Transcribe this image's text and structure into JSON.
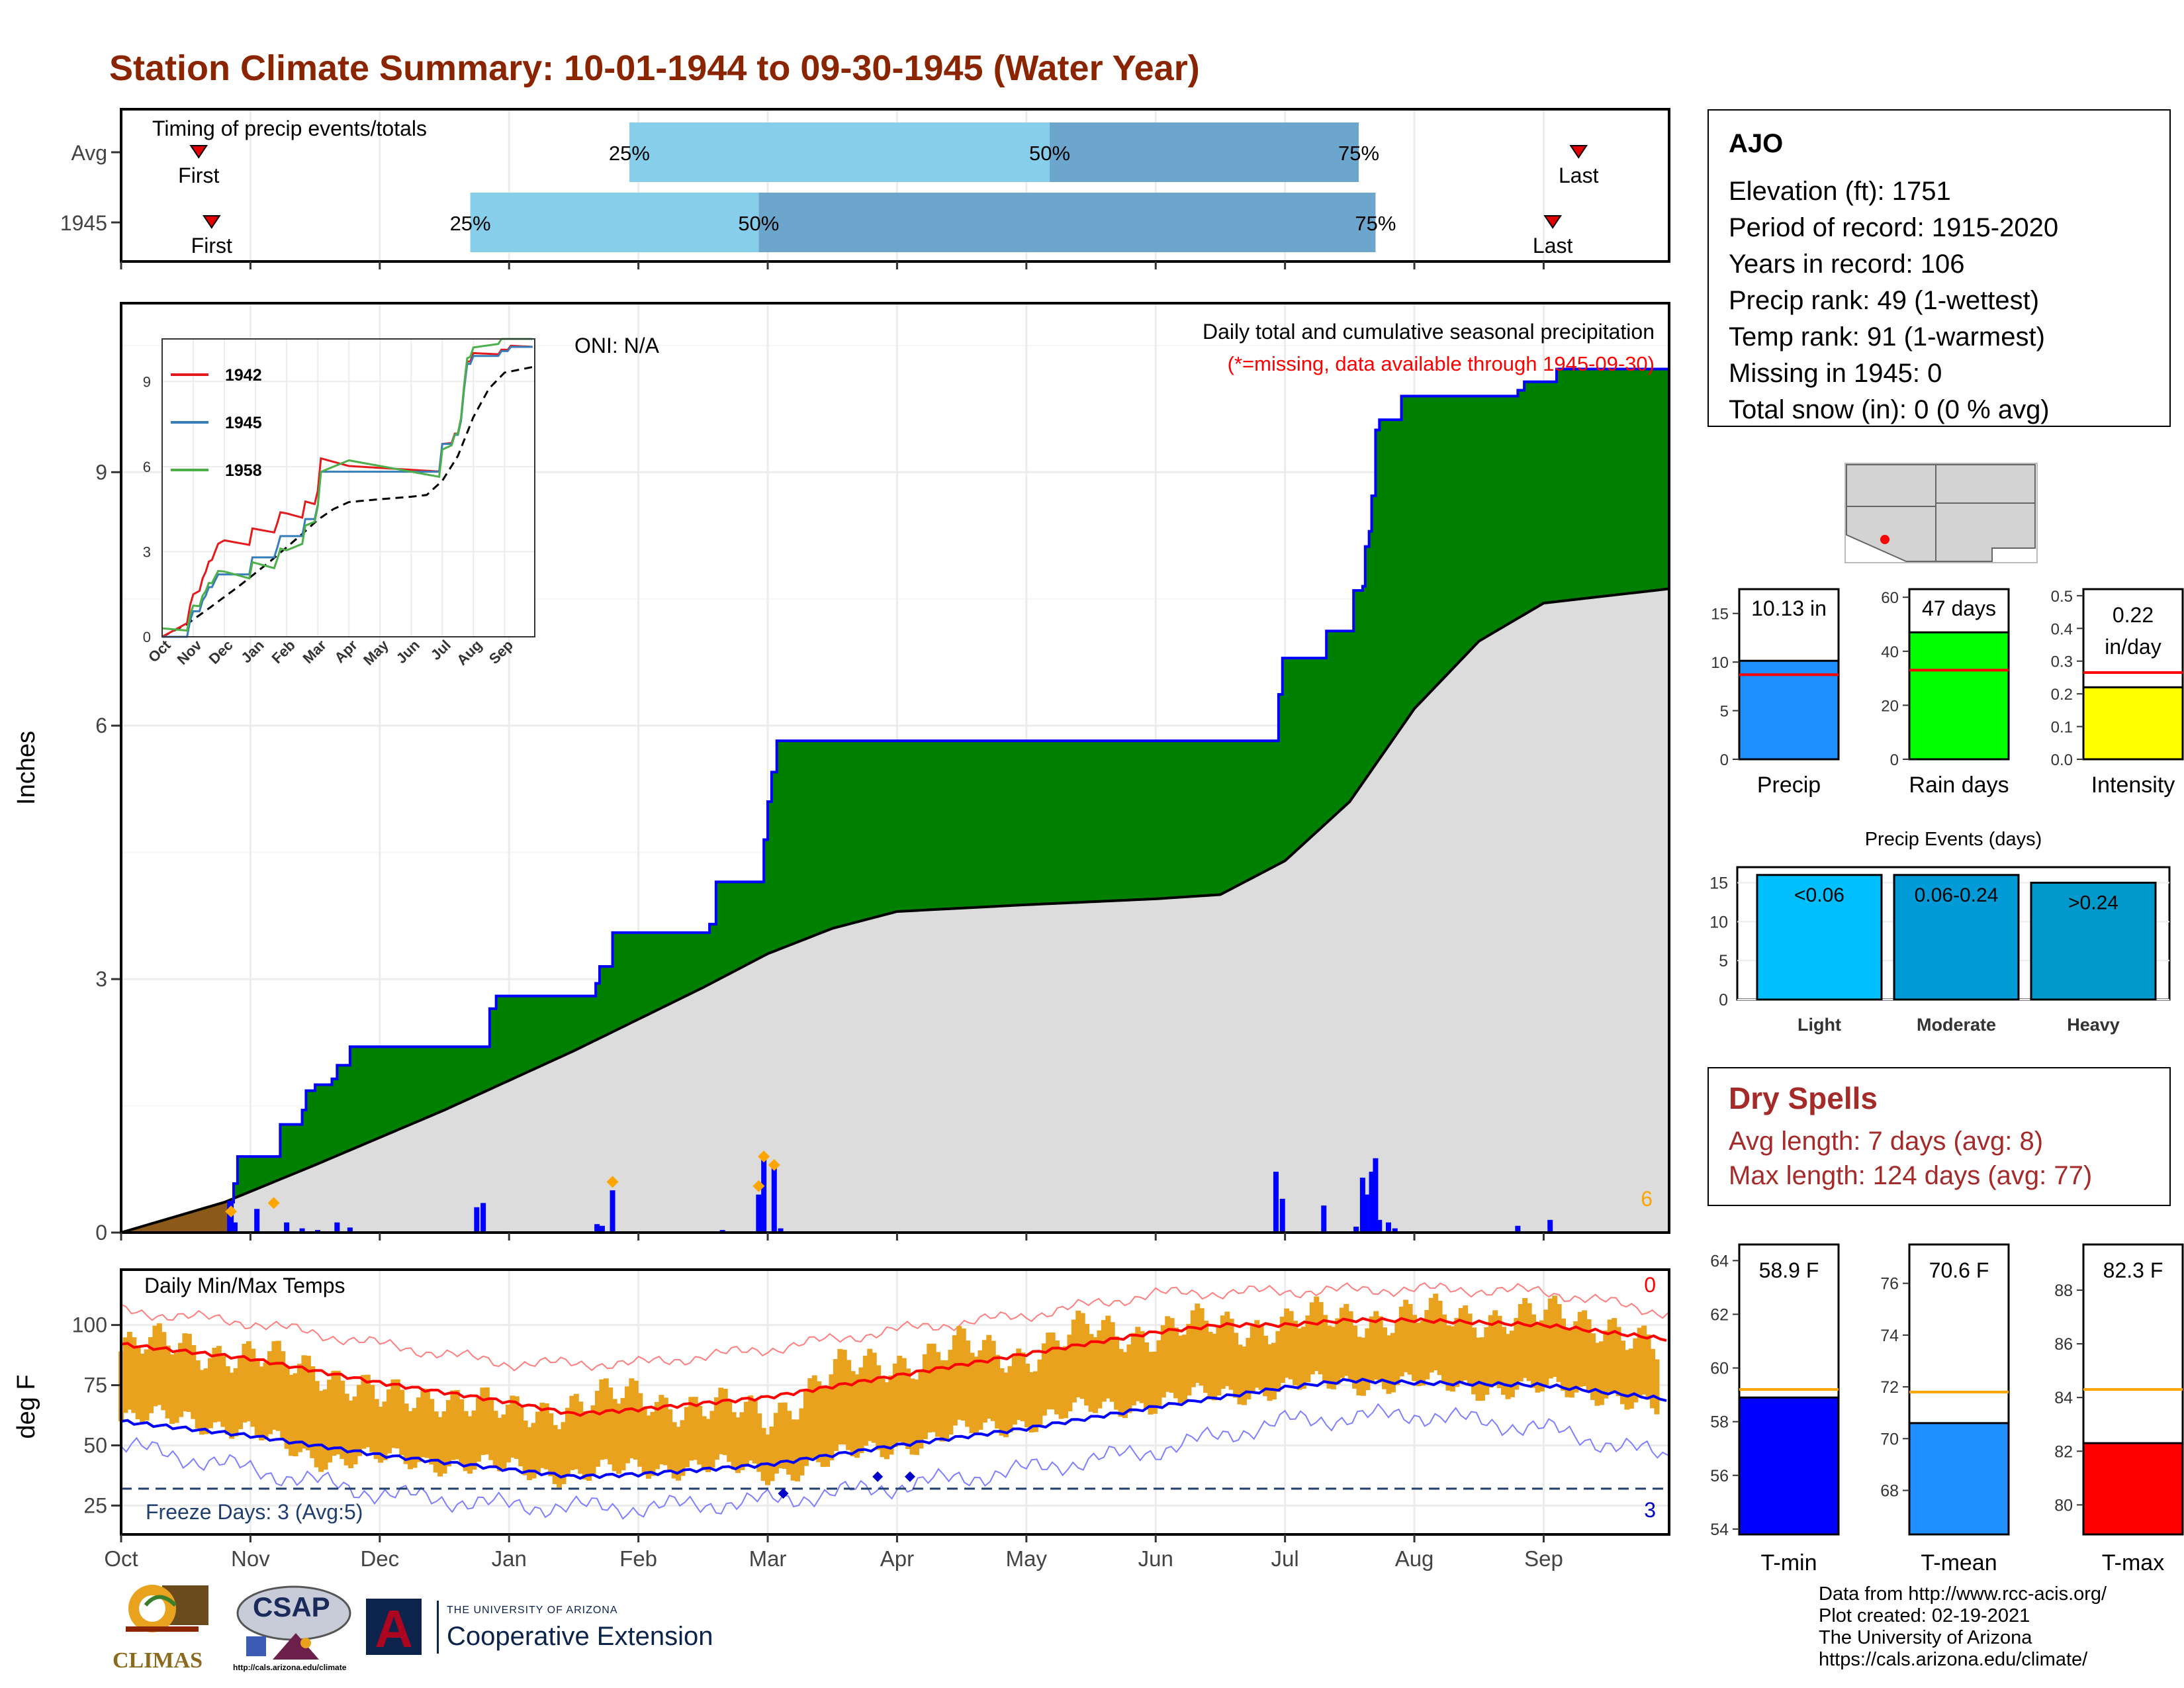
{
  "title": "Station Climate Summary: 10-01-1944 to 09-30-1945 (Water Year)",
  "colors": {
    "title": "#8b2500",
    "cum_precip": "#008000",
    "avg_cum": "#dcdcdc",
    "bars": "#0000ff",
    "temp_bar": "#e8a21e",
    "t_max_avg": "#ff0000",
    "t_min_avg": "#0000ff",
    "dry": "#a52a2a"
  },
  "timing": {
    "label": "Timing of precip events/totals",
    "rows": [
      {
        "name": "Avg",
        "first": "First",
        "last": "Last",
        "p25_month": 3.93,
        "p50_month": 7.18,
        "p75_month": 9.57,
        "first_month": 0.6,
        "last_month": 11.27
      },
      {
        "name": "1945",
        "first": "First",
        "last": "Last",
        "p25_month": 2.7,
        "p50_month": 4.93,
        "p75_month": 9.7,
        "first_month": 0.7,
        "last_month": 11.07
      }
    ],
    "pct_labels": [
      "25%",
      "50%",
      "75%"
    ]
  },
  "precip_panel": {
    "heading": "Daily total and cumulative seasonal precipitation",
    "missing_note": "(*=missing, data available through 1945-09-30)",
    "oni": "ONI: N/A",
    "ylabel": "Inches",
    "yticks": [
      "0",
      "3",
      "6",
      "9"
    ],
    "count_label": "6"
  },
  "temp_panel": {
    "heading": "Daily Min/Max Temps",
    "ylabel": "deg F",
    "yticks": [
      "25",
      "50",
      "75",
      "100"
    ],
    "freeze_label": "Freeze Days: 3 (Avg:5)",
    "hot_count": "0",
    "freeze_count": "3",
    "months": [
      "Oct",
      "Nov",
      "Dec",
      "Jan",
      "Feb",
      "Mar",
      "Apr",
      "May",
      "Jun",
      "Jul",
      "Aug",
      "Sep"
    ]
  },
  "inset": {
    "series": [
      {
        "name": "1942",
        "color": "#e41a1c"
      },
      {
        "name": "1945",
        "color": "#377eb8"
      },
      {
        "name": "1958",
        "color": "#4daf4a"
      }
    ],
    "yticks": [
      "0",
      "3",
      "6",
      "9"
    ],
    "months": [
      "Oct",
      "Nov",
      "Dec",
      "Jan",
      "Feb",
      "Mar",
      "Apr",
      "May",
      "Jun",
      "Jul",
      "Aug",
      "Sep"
    ]
  },
  "station": {
    "name": "AJO",
    "lines": [
      "Elevation (ft): 1751",
      "Period of record: 1915-2020",
      "Years in record: 106",
      "Precip rank: 49 (1-wettest)",
      "Temp rank: 91 (1-warmest)",
      "Missing in 1945: 0",
      "Total snow (in): 0 (0 % avg)"
    ]
  },
  "mini_precip": [
    {
      "label": "Precip",
      "value": 10.13,
      "value_text": "10.13 in",
      "avg": 8.7,
      "ymax": 17.5,
      "ticks": [
        0,
        5,
        10,
        15
      ],
      "color": "#1e90ff"
    },
    {
      "label": "Rain days",
      "value": 47,
      "value_text": "47 days",
      "avg": 33,
      "ymax": 63,
      "ticks": [
        0,
        20,
        40,
        60
      ],
      "color": "#00ff00"
    },
    {
      "label": "Intensity",
      "value": 0.22,
      "value_text": "0.22",
      "value_text2": "in/day",
      "avg": 0.265,
      "ymax": 0.52,
      "ticks": [
        0.0,
        0.1,
        0.2,
        0.3,
        0.4,
        0.5
      ],
      "color": "#ffff00"
    }
  ],
  "events": {
    "title": "Precip Events (days)",
    "ymax": 17,
    "ticks": [
      0,
      5,
      10,
      15
    ],
    "bars": [
      {
        "cat": "Light",
        "label": "<0.06",
        "value": 16,
        "color": "#00bfff"
      },
      {
        "cat": "Moderate",
        "label": "0.06-0.24",
        "value": 16,
        "color": "#009ad6"
      },
      {
        "cat": "Heavy",
        "label": ">0.24",
        "value": 15,
        "color": "#0099cc"
      }
    ]
  },
  "dry": {
    "heading": "Dry Spells",
    "avg_line": "Avg length: 7 days (avg: 8)",
    "max_line": "Max length: 124 days (avg: 77)"
  },
  "mini_temp": [
    {
      "label": "T-min",
      "value": 58.9,
      "value_text": "58.9 F",
      "avg": 59.2,
      "ymin": 53.8,
      "ymax": 64.6,
      "ticks": [
        54,
        56,
        58,
        60,
        62,
        64
      ],
      "color": "#0000ff"
    },
    {
      "label": "T-mean",
      "value": 70.6,
      "value_text": "70.6 F",
      "avg": 71.8,
      "ymin": 66.3,
      "ymax": 77.5,
      "ticks": [
        68,
        70,
        72,
        74,
        76
      ],
      "color": "#1e90ff"
    },
    {
      "label": "T-max",
      "value": 82.3,
      "value_text": "82.3 F",
      "avg": 84.3,
      "ymin": 78.9,
      "ymax": 89.7,
      "ticks": [
        80,
        82,
        84,
        86,
        88
      ],
      "color": "#ff0000"
    }
  ],
  "footer": [
    "Data from http://www.rcc-acis.org/",
    "Plot created: 02-19-2021",
    "The University of Arizona",
    "https://cals.arizona.edu/climate/"
  ],
  "logos": {
    "climas": "CLIMAS",
    "csap": "CSAP",
    "csap_url": "http://cals.arizona.edu/climate",
    "ua_small": "THE UNIVERSITY OF ARIZONA",
    "ua_big": "Cooperative Extension"
  },
  "chart_data": [
    {
      "type": "area",
      "title": "Daily total and cumulative seasonal precipitation",
      "ylabel": "Inches",
      "ylim": [
        0,
        11
      ],
      "x_unit": "month of water year (0 = Oct 1)",
      "cumulative_1945": [
        [
          0,
          0
        ],
        [
          0.83,
          0.36
        ],
        [
          0.87,
          0.58
        ],
        [
          0.9,
          0.9
        ],
        [
          1.2,
          0.9
        ],
        [
          1.23,
          1.28
        ],
        [
          1.4,
          1.45
        ],
        [
          1.43,
          1.68
        ],
        [
          1.5,
          1.75
        ],
        [
          1.63,
          1.82
        ],
        [
          1.67,
          1.98
        ],
        [
          1.77,
          2.2
        ],
        [
          2.8,
          2.2
        ],
        [
          2.85,
          2.65
        ],
        [
          2.9,
          2.8
        ],
        [
          3.6,
          2.8
        ],
        [
          3.67,
          2.95
        ],
        [
          3.7,
          3.15
        ],
        [
          3.8,
          3.55
        ],
        [
          4.52,
          3.55
        ],
        [
          4.55,
          3.65
        ],
        [
          4.6,
          4.05
        ],
        [
          4.6,
          4.15
        ],
        [
          4.93,
          4.15
        ],
        [
          4.97,
          4.65
        ],
        [
          5.0,
          5.1
        ],
        [
          5.03,
          5.45
        ],
        [
          5.07,
          5.82
        ],
        [
          8.93,
          5.82
        ],
        [
          8.95,
          6.37
        ],
        [
          8.98,
          6.8
        ],
        [
          9.3,
          6.8
        ],
        [
          9.32,
          7.12
        ],
        [
          9.5,
          7.12
        ],
        [
          9.53,
          7.6
        ],
        [
          9.6,
          7.65
        ],
        [
          9.62,
          8.12
        ],
        [
          9.65,
          8.3
        ],
        [
          9.67,
          8.72
        ],
        [
          9.7,
          9.5
        ],
        [
          9.73,
          9.62
        ],
        [
          9.9,
          9.9
        ],
        [
          10.8,
          9.97
        ],
        [
          10.85,
          10.07
        ],
        [
          11.05,
          10.07
        ],
        [
          11.1,
          10.22
        ],
        [
          11.97,
          10.22
        ]
      ],
      "avg_cumulative": [
        [
          0,
          0
        ],
        [
          0.8,
          0.36
        ],
        [
          1.5,
          0.8
        ],
        [
          2.5,
          1.45
        ],
        [
          3.5,
          2.15
        ],
        [
          4.5,
          2.9
        ],
        [
          5.0,
          3.3
        ],
        [
          5.5,
          3.6
        ],
        [
          6.0,
          3.8
        ],
        [
          7.0,
          3.88
        ],
        [
          8.0,
          3.95
        ],
        [
          8.5,
          4.0
        ],
        [
          9.0,
          4.4
        ],
        [
          9.5,
          5.1
        ],
        [
          10.0,
          6.2
        ],
        [
          10.5,
          7.0
        ],
        [
          11.0,
          7.45
        ],
        [
          11.97,
          7.62
        ]
      ],
      "daily_bars": [
        [
          0.85,
          0.37
        ],
        [
          0.88,
          0.12
        ],
        [
          1.05,
          0.28
        ],
        [
          1.28,
          0.12
        ],
        [
          1.4,
          0.05
        ],
        [
          1.52,
          0.03
        ],
        [
          1.67,
          0.12
        ],
        [
          1.77,
          0.06
        ],
        [
          2.75,
          0.3
        ],
        [
          2.8,
          0.35
        ],
        [
          3.68,
          0.1
        ],
        [
          3.72,
          0.08
        ],
        [
          3.8,
          0.5
        ],
        [
          4.65,
          0.03
        ],
        [
          4.93,
          0.45
        ],
        [
          4.97,
          0.88
        ],
        [
          5.05,
          0.78
        ],
        [
          5.1,
          0.05
        ],
        [
          8.93,
          0.72
        ],
        [
          8.98,
          0.4
        ],
        [
          9.3,
          0.32
        ],
        [
          9.55,
          0.07
        ],
        [
          9.6,
          0.65
        ],
        [
          9.63,
          0.45
        ],
        [
          9.67,
          0.72
        ],
        [
          9.7,
          0.88
        ],
        [
          9.73,
          0.15
        ],
        [
          9.8,
          0.12
        ],
        [
          9.85,
          0.05
        ],
        [
          10.8,
          0.08
        ],
        [
          11.05,
          0.15
        ]
      ],
      "trace_markers": [
        [
          0.85,
          0.25
        ],
        [
          1.18,
          0.35
        ],
        [
          3.8,
          0.6
        ],
        [
          4.93,
          0.55
        ],
        [
          4.97,
          0.9
        ],
        [
          5.05,
          0.8
        ]
      ]
    },
    {
      "type": "line",
      "title": "Daily Min/Max Temps",
      "ylabel": "deg F",
      "ylim": [
        13,
        123
      ],
      "x_unit": "month of water year (0 = Oct 1)",
      "avg_max": [
        [
          0,
          92
        ],
        [
          1,
          86
        ],
        [
          2,
          76
        ],
        [
          3,
          68
        ],
        [
          3.5,
          63
        ],
        [
          4,
          65
        ],
        [
          5,
          70
        ],
        [
          6,
          79
        ],
        [
          7,
          88
        ],
        [
          8,
          97
        ],
        [
          8.5,
          100
        ],
        [
          9,
          100
        ],
        [
          9.5,
          102
        ],
        [
          10,
          102
        ],
        [
          11,
          100
        ],
        [
          11.97,
          94
        ]
      ],
      "avg_min": [
        [
          0,
          60
        ],
        [
          1,
          54
        ],
        [
          2,
          46
        ],
        [
          3,
          40
        ],
        [
          3.5,
          37
        ],
        [
          4,
          38
        ],
        [
          5,
          42
        ],
        [
          6,
          50
        ],
        [
          7,
          57
        ],
        [
          8,
          66
        ],
        [
          9,
          74
        ],
        [
          9.5,
          77
        ],
        [
          10,
          76
        ],
        [
          11,
          75
        ],
        [
          11.97,
          69
        ]
      ],
      "record_max": [
        [
          0,
          106
        ],
        [
          1,
          101
        ],
        [
          2,
          92
        ],
        [
          3,
          84
        ],
        [
          4,
          84
        ],
        [
          5,
          90
        ],
        [
          6,
          98
        ],
        [
          7,
          104
        ],
        [
          8,
          113
        ],
        [
          9,
          114
        ],
        [
          10,
          115
        ],
        [
          11,
          114
        ],
        [
          11.97,
          105
        ]
      ],
      "record_min": [
        [
          0,
          50
        ],
        [
          1,
          40
        ],
        [
          2,
          30
        ],
        [
          3,
          25
        ],
        [
          4,
          24
        ],
        [
          5,
          27
        ],
        [
          6,
          33
        ],
        [
          7,
          40
        ],
        [
          8,
          48
        ],
        [
          9,
          60
        ],
        [
          10,
          63
        ],
        [
          11,
          57
        ],
        [
          11.97,
          45
        ]
      ],
      "max_1945": [
        [
          0,
          89
        ],
        [
          0.5,
          93
        ],
        [
          1,
          85
        ],
        [
          1.5,
          84
        ],
        [
          2,
          68
        ],
        [
          2.5,
          72
        ],
        [
          3,
          62
        ],
        [
          3.5,
          68
        ],
        [
          4,
          70
        ],
        [
          4.5,
          66
        ],
        [
          5,
          62
        ],
        [
          5.5,
          80
        ],
        [
          6,
          85
        ],
        [
          6.5,
          90
        ],
        [
          7,
          88
        ],
        [
          7.5,
          98
        ],
        [
          8,
          97
        ],
        [
          8.5,
          100
        ],
        [
          9,
          100
        ],
        [
          9.5,
          104
        ],
        [
          10,
          103
        ],
        [
          10.5,
          104
        ],
        [
          11,
          103
        ],
        [
          11.5,
          102
        ],
        [
          11.97,
          84
        ]
      ],
      "min_1945": [
        [
          0,
          60
        ],
        [
          0.5,
          62
        ],
        [
          1,
          55
        ],
        [
          1.5,
          45
        ],
        [
          2,
          44
        ],
        [
          2.5,
          43
        ],
        [
          3,
          40
        ],
        [
          3.5,
          38
        ],
        [
          4,
          40
        ],
        [
          4.5,
          42
        ],
        [
          5,
          38
        ],
        [
          5.5,
          44
        ],
        [
          6,
          50
        ],
        [
          6.5,
          55
        ],
        [
          7,
          60
        ],
        [
          7.5,
          65
        ],
        [
          8,
          68
        ],
        [
          8.5,
          71
        ],
        [
          9,
          74
        ],
        [
          9.5,
          76
        ],
        [
          10,
          76
        ],
        [
          10.5,
          74
        ],
        [
          11,
          73
        ],
        [
          11.5,
          72
        ],
        [
          11.97,
          62
        ]
      ],
      "freeze_line": 32,
      "freeze_points": [
        [
          5.12,
          30
        ],
        [
          5.85,
          37
        ],
        [
          6.1,
          37
        ]
      ]
    }
  ]
}
